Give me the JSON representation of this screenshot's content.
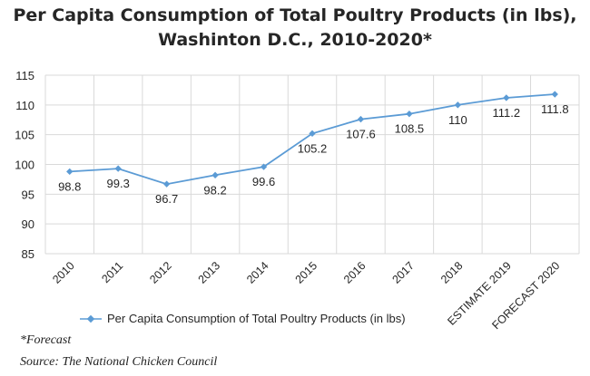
{
  "chart_data": {
    "type": "line",
    "title_lines": [
      "Per Capita Consumption of Total Poultry Products (in lbs),",
      "Washinton D.C., 2010-2020*"
    ],
    "categories": [
      "2010",
      "2011",
      "2012",
      "2013",
      "2014",
      "2015",
      "2016",
      "2017",
      "2018",
      "ESTIMATE 2019",
      "FORECAST 2020"
    ],
    "series": [
      {
        "name": "Per Capita Consumption of Total Poultry Products (in lbs)",
        "values": [
          98.8,
          99.3,
          96.7,
          98.2,
          99.6,
          105.2,
          107.6,
          108.5,
          110,
          111.2,
          111.8
        ],
        "labels": [
          "98.8",
          "99.3",
          "96.7",
          "98.2",
          "99.6",
          "105.2",
          "107.6",
          "108.5",
          "110",
          "111.2",
          "111.8"
        ],
        "color": "#5b9bd5"
      }
    ],
    "yticks": [
      85,
      90,
      95,
      100,
      105,
      110,
      115
    ],
    "ylim": [
      85,
      115
    ],
    "grid": true,
    "legend_position": "bottom",
    "xlabel": "",
    "ylabel": ""
  },
  "footnotes": {
    "forecast": "*Forecast",
    "source": "Source: The National Chicken Council"
  },
  "colors": {
    "line": "#5b9bd5",
    "grid": "#d9d9d9",
    "text": "#262626"
  }
}
